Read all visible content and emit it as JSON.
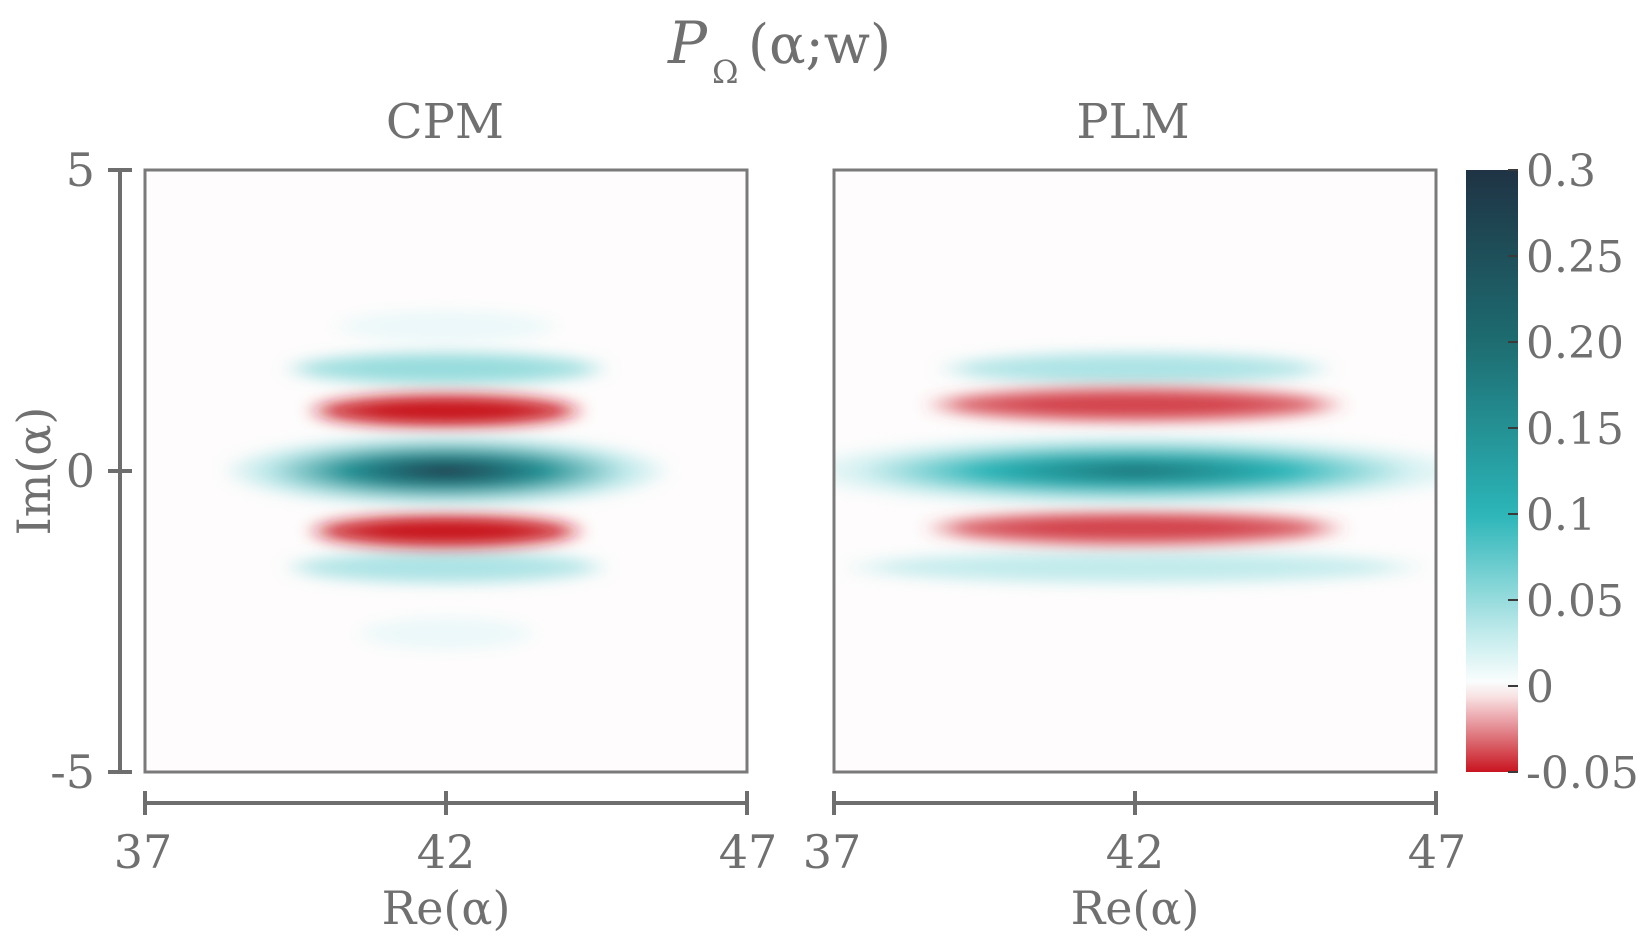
{
  "figure": {
    "title_main": "P",
    "title_sub": "Ω",
    "title_args": "(α;w)"
  },
  "chart_data": [
    {
      "type": "heatmap",
      "title": "CPM",
      "xlabel": "Re(α)",
      "ylabel": "Im(α)",
      "xlim": [
        37,
        47
      ],
      "ylim": [
        -5,
        5
      ],
      "xticks": [
        "37",
        "42",
        "47"
      ],
      "yticks": [
        "5",
        "0",
        "-5"
      ],
      "bands": [
        {
          "im": 2.4,
          "re_center": 42.0,
          "re_halfwidth": 2.0,
          "value": 0.01
        },
        {
          "im": 1.7,
          "re_center": 42.0,
          "re_halfwidth": 2.8,
          "value": 0.05
        },
        {
          "im": 1.0,
          "re_center": 42.0,
          "re_halfwidth": 2.4,
          "value": -0.05
        },
        {
          "im": 0.0,
          "re_center": 42.0,
          "re_halfwidth": 3.8,
          "value": 0.3
        },
        {
          "im": -1.0,
          "re_center": 42.0,
          "re_halfwidth": 2.4,
          "value": -0.05
        },
        {
          "im": -1.6,
          "re_center": 42.0,
          "re_halfwidth": 2.8,
          "value": 0.04
        },
        {
          "im": -2.7,
          "re_center": 42.0,
          "re_halfwidth": 1.6,
          "value": 0.01
        }
      ]
    },
    {
      "type": "heatmap",
      "title": "PLM",
      "xlabel": "Re(α)",
      "ylabel": "",
      "xlim": [
        37,
        47
      ],
      "ylim": [
        -5,
        5
      ],
      "xticks": [
        "37",
        "42",
        "47"
      ],
      "yticks": [],
      "bands": [
        {
          "im": 1.7,
          "re_center": 42.0,
          "re_halfwidth": 3.4,
          "value": 0.04
        },
        {
          "im": 1.1,
          "re_center": 42.0,
          "re_halfwidth": 3.6,
          "value": -0.04
        },
        {
          "im": 0.0,
          "re_center": 42.0,
          "re_halfwidth": 5.8,
          "value": 0.2
        },
        {
          "im": -0.95,
          "re_center": 42.0,
          "re_halfwidth": 3.6,
          "value": -0.04
        },
        {
          "im": -1.6,
          "re_center": 42.0,
          "re_halfwidth": 5.0,
          "value": 0.03
        }
      ]
    }
  ],
  "colorbar": {
    "min": -0.05,
    "max": 0.3,
    "ticks": [
      {
        "value": 0.3,
        "label": "0.3"
      },
      {
        "value": 0.25,
        "label": "0.25"
      },
      {
        "value": 0.2,
        "label": "0.20"
      },
      {
        "value": 0.15,
        "label": "0.15"
      },
      {
        "value": 0.1,
        "label": "0.1"
      },
      {
        "value": 0.05,
        "label": "0.05"
      },
      {
        "value": 0.0,
        "label": "0"
      },
      {
        "value": -0.05,
        "label": "-0.05"
      }
    ],
    "colors": {
      "dark": "#1f3344",
      "teal_dark": "#1d6c70",
      "teal": "#2bb5b8",
      "teal_light": "#c2ebec",
      "zero": "#ffffff",
      "red_light": "#f0c8cb",
      "red": "#c8141f"
    }
  }
}
